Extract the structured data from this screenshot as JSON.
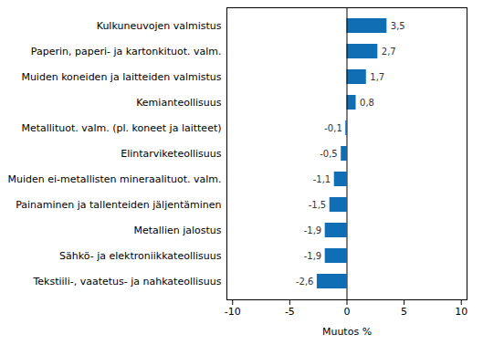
{
  "chart_data": {
    "type": "bar",
    "orientation": "horizontal",
    "categories": [
      "Kulkuneuvojen valmistus",
      "Paperin, paperi- ja kartonkituot. valm.",
      "Muiden koneiden ja laitteiden valmistus",
      "Kemianteollisuus",
      "Metallituot. valm. (pl. koneet ja laitteet)",
      "Elintarviketeollisuus",
      "Muiden ei-metallisten mineraalituot. valm.",
      "Painaminen ja tallenteiden jäljentäminen",
      "Metallien jalostus",
      "Sähkö- ja elektroniikkateollisuus",
      "Tekstiili-, vaatetus- ja nahkateollisuus"
    ],
    "values": [
      3.5,
      2.7,
      1.7,
      0.8,
      -0.1,
      -0.5,
      -1.1,
      -1.5,
      -1.9,
      -1.9,
      -2.6
    ],
    "value_labels": [
      "3,5",
      "2,7",
      "1,7",
      "0,8",
      "-0,1",
      "-0,5",
      "-1,1",
      "-1,5",
      "-1,9",
      "-1,9",
      "-2,6"
    ],
    "data_labels": true,
    "color": "#0f6eb4",
    "xlabel": "Muutos %",
    "xlim": [
      -10.5,
      10.5
    ],
    "xticks": [
      -10,
      -5,
      0,
      5,
      10
    ],
    "grid": false
  }
}
